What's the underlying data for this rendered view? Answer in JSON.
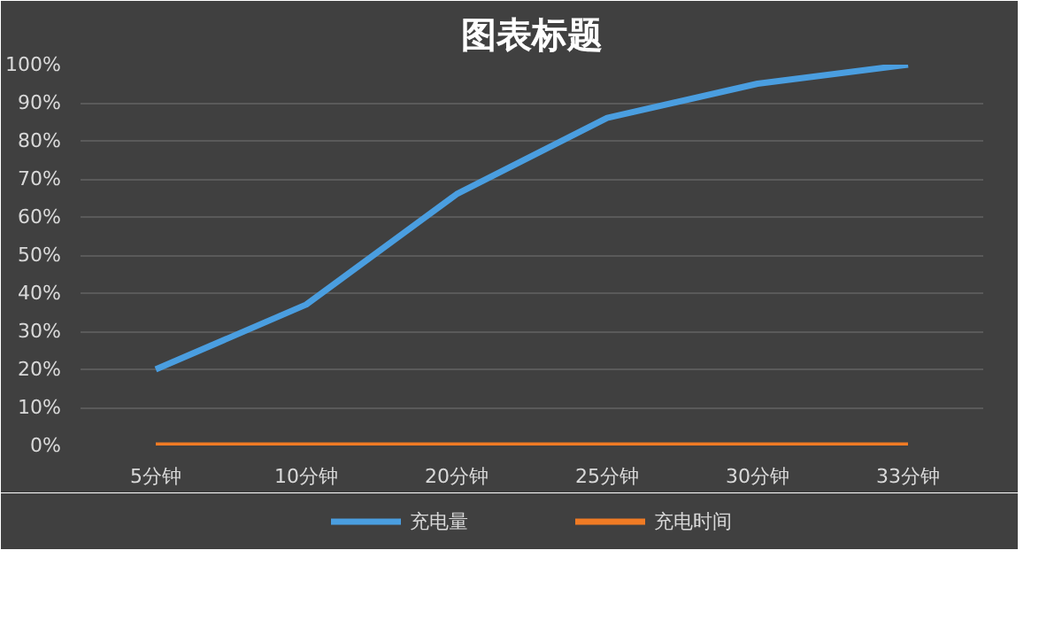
{
  "chart_data": {
    "type": "line",
    "title": "图表标题",
    "categories": [
      "5分钟",
      "10分钟",
      "20分钟",
      "25分钟",
      "30分钟",
      "33分钟"
    ],
    "series": [
      {
        "name": "充电量",
        "color": "#4a9ee0",
        "values": [
          20,
          37,
          66,
          86,
          95,
          100
        ]
      },
      {
        "name": "充电时间",
        "color": "#f07b24",
        "values": [
          0,
          0,
          0,
          0,
          0,
          0
        ]
      }
    ],
    "ylim": [
      0,
      100
    ],
    "yticks": [
      {
        "value": 0,
        "label": "0%"
      },
      {
        "value": 10,
        "label": "10%"
      },
      {
        "value": 20,
        "label": "20%"
      },
      {
        "value": 30,
        "label": "30%"
      },
      {
        "value": 40,
        "label": "40%"
      },
      {
        "value": 50,
        "label": "50%"
      },
      {
        "value": 60,
        "label": "60%"
      },
      {
        "value": 70,
        "label": "70%"
      },
      {
        "value": 80,
        "label": "80%"
      },
      {
        "value": 90,
        "label": "90%"
      },
      {
        "value": 100,
        "label": "100%"
      }
    ],
    "grid": "y",
    "legend": "bottom",
    "marker": "none",
    "line_style": "solid"
  }
}
